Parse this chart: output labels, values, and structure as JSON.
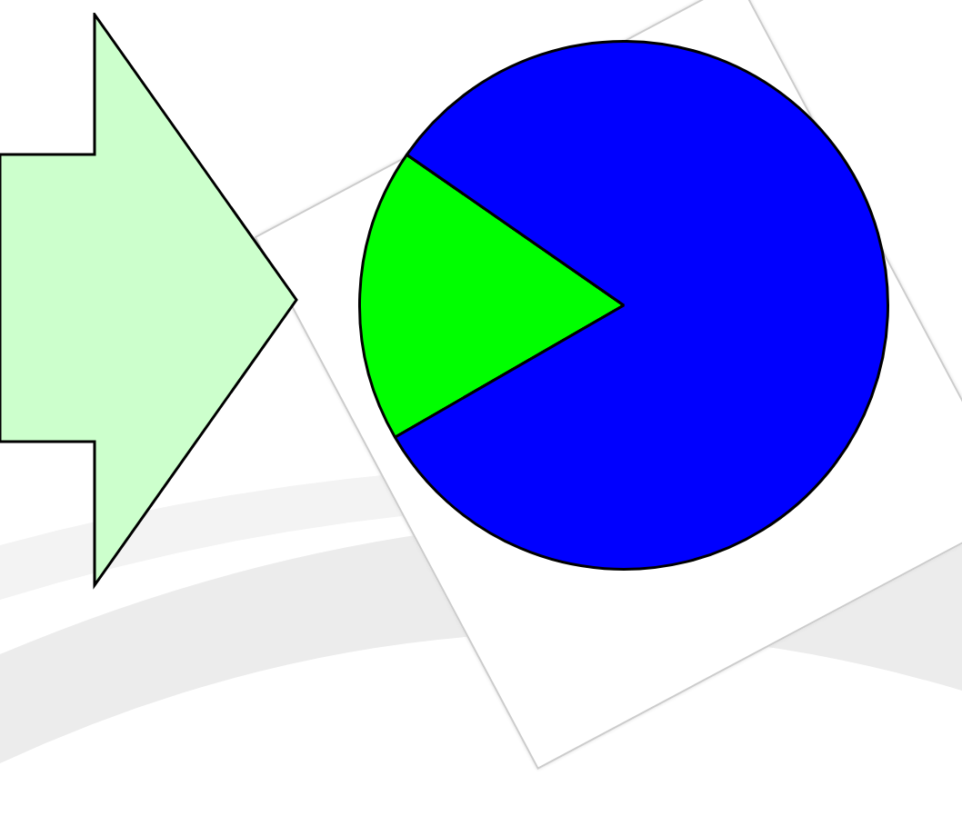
{
  "chart_data": {
    "type": "pie",
    "categories": [
      null,
      null
    ],
    "values": [
      18,
      82
    ],
    "colors": [
      "#00ff00",
      "#0000ff"
    ],
    "legend": false
  }
}
